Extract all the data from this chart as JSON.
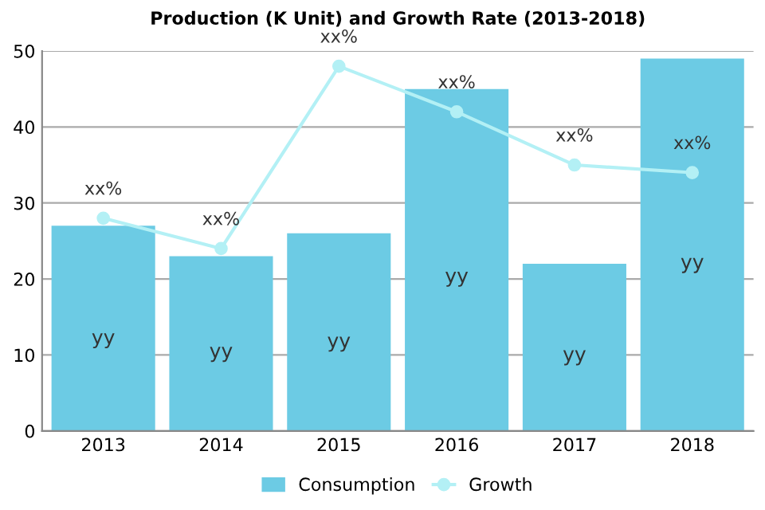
{
  "chart_data": {
    "type": "bar",
    "title": "Production (K Unit) and Growth Rate (2013-2018)",
    "categories": [
      "2013",
      "2014",
      "2015",
      "2016",
      "2017",
      "2018"
    ],
    "series": [
      {
        "name": "Consumption",
        "color": "#6ccbe4",
        "values": [
          27,
          23,
          26,
          45,
          22,
          49
        ],
        "value_labels": [
          "yy",
          "yy",
          "yy",
          "yy",
          "yy",
          "yy"
        ]
      },
      {
        "name": "Growth",
        "type": "line",
        "color": "#b3f0f5",
        "marker": "circle",
        "values": [
          28,
          24,
          48,
          42,
          35,
          34
        ],
        "value_labels": [
          "xx%",
          "xx%",
          "xx%",
          "xx%",
          "xx%",
          "xx%"
        ]
      }
    ],
    "ylim": [
      0,
      50
    ],
    "yticks": [
      0,
      10,
      20,
      30,
      40,
      50
    ],
    "grid": "y",
    "legend": "bottom"
  }
}
